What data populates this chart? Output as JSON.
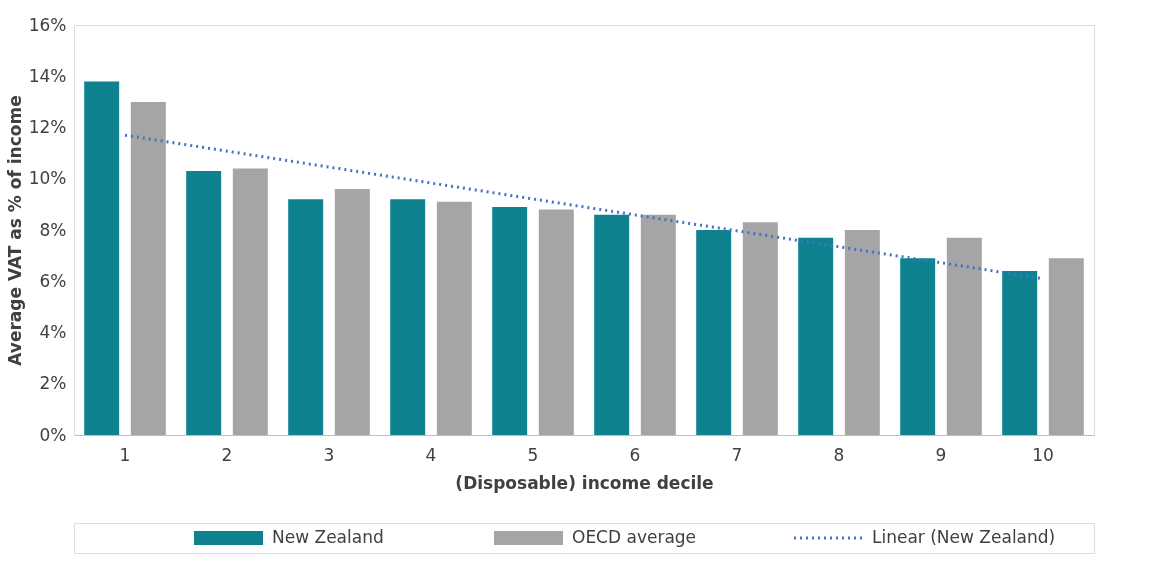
{
  "chart_data": {
    "type": "bar",
    "xlabel": "(Disposable) income decile",
    "ylabel": "Average VAT as % of income",
    "categories": [
      "1",
      "2",
      "3",
      "4",
      "5",
      "6",
      "7",
      "8",
      "9",
      "10"
    ],
    "series": [
      {
        "name": "New Zealand",
        "color": "#0e838f",
        "values": [
          13.8,
          10.3,
          9.2,
          9.2,
          8.9,
          8.6,
          8.0,
          7.7,
          6.9,
          6.4
        ]
      },
      {
        "name": "OECD average",
        "color": "#a5a5a5",
        "values": [
          13.0,
          10.4,
          9.6,
          9.1,
          8.8,
          8.6,
          8.3,
          8.0,
          7.7,
          6.9
        ]
      },
      {
        "name": "Linear (New Zealand)",
        "type": "line",
        "color": "#4472c4",
        "line_style": "dotted",
        "marker": "none",
        "x": [
          "1",
          "10"
        ],
        "values": [
          11.7,
          6.1
        ]
      }
    ],
    "ylim": [
      0,
      16
    ],
    "yticks": [
      {
        "value": 0,
        "label": "0%"
      },
      {
        "value": 2,
        "label": "2%"
      },
      {
        "value": 4,
        "label": "4%"
      },
      {
        "value": 6,
        "label": "6%"
      },
      {
        "value": 8,
        "label": "8%"
      },
      {
        "value": 10,
        "label": "10%"
      },
      {
        "value": 12,
        "label": "12%"
      },
      {
        "value": 14,
        "label": "14%"
      },
      {
        "value": 16,
        "label": "16%"
      }
    ],
    "grid": false,
    "legend": "bottom"
  }
}
